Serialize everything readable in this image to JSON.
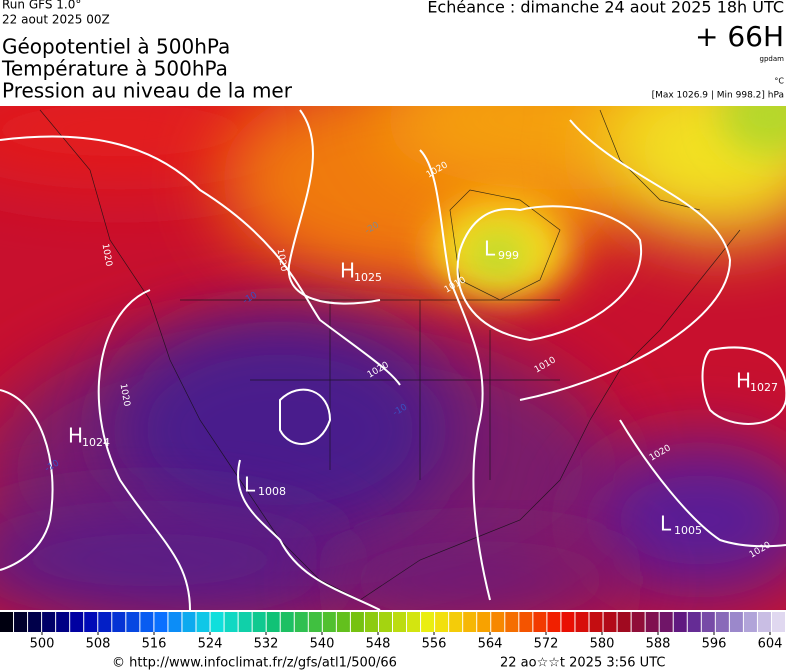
{
  "header": {
    "run": "Run GFS 1.0°",
    "run_date": "22 aout 2025 00Z",
    "forecast_time": "Echéance : dimanche 24 aout 2025 18h UTC",
    "titles": [
      "Géopotentiel à 500hPa",
      "Température à 500hPa",
      "Pression au niveau de la mer"
    ],
    "lead": "+ 66H",
    "unit_geopotential": "gpdam",
    "unit_temperature": "°C",
    "pressure_range": "[Max 1026.9 | Min 998.2] hPa"
  },
  "pressure_centers": [
    {
      "type": "H",
      "value": 1025
    },
    {
      "type": "L",
      "value": 999
    },
    {
      "type": "H",
      "value": 1024
    },
    {
      "type": "L",
      "value": 1008
    },
    {
      "type": "H",
      "value": 1027
    },
    {
      "type": "L",
      "value": 1005
    }
  ],
  "contour_labels": [
    "1020",
    "1020",
    "1020",
    "1020",
    "1010",
    "1010",
    "1020",
    "1020",
    "1020",
    "-10",
    "-10",
    "-10",
    "-20"
  ],
  "colorbar": {
    "ticks": [
      500,
      508,
      516,
      524,
      532,
      540,
      548,
      556,
      564,
      572,
      580,
      588,
      596,
      604
    ]
  },
  "footer": {
    "source": "© http://www.infoclimat.fr/z/gfs/atl1/500/66",
    "generated": "22 ao☆☆t 2025  3:56 UTC"
  }
}
